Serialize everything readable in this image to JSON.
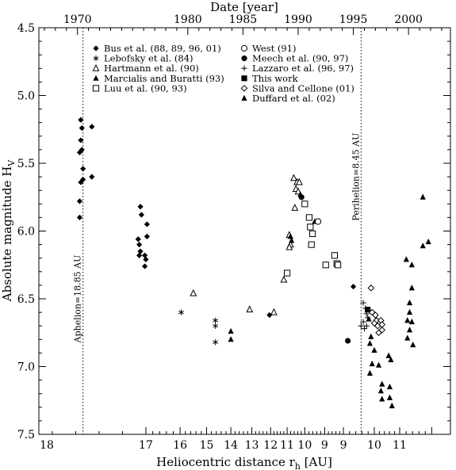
{
  "chart_data": {
    "type": "scatter",
    "title": "",
    "xlabel": "Heliocentric distance r",
    "xlabel_sub": "h",
    "xlabel_unit": " [AU]",
    "ylabel": "Absolute magnitude H",
    "ylabel_sub": "V",
    "top_xlabel": "Date [year]",
    "ylim": [
      4.5,
      7.5
    ],
    "y_inverted": true,
    "y_ticks": [
      "4.5",
      "5.0",
      "5.5",
      "6.0",
      "6.5",
      "7.0",
      "7.5"
    ],
    "top_ticks": [
      "1970",
      "1980",
      "1985",
      "1990",
      "1995",
      "2000"
    ],
    "bottom_ticks": [
      "18",
      "17",
      "16",
      "15",
      "14",
      "13",
      "12",
      "11",
      "10",
      "9",
      "9",
      "10",
      "11"
    ],
    "bottom_tick_labels": [
      {
        "label": "18",
        "edge": "start"
      },
      {
        "label": "18",
        "edge": "outbound"
      },
      {
        "label": "17",
        "edge": "outbound"
      },
      {
        "label": "16",
        "edge": "outbound"
      },
      {
        "label": "15",
        "edge": "outbound"
      },
      {
        "label": "14",
        "edge": "outbound"
      },
      {
        "label": "13",
        "edge": "outbound"
      },
      {
        "label": "12",
        "edge": "outbound"
      },
      {
        "label": "11",
        "edge": "outbound"
      },
      {
        "label": "10",
        "edge": "outbound"
      },
      {
        "label": "9",
        "edge": "outbound"
      },
      {
        "label": "9",
        "edge": "inbound"
      },
      {
        "label": "10",
        "edge": "inbound"
      },
      {
        "label": "11",
        "edge": "inbound"
      }
    ],
    "year_range": [
      1966.5,
      2003.8
    ],
    "year_ticks": [
      1970,
      1980,
      1985,
      1990,
      1995,
      2000
    ],
    "distance_ticks": [
      {
        "label": "18",
        "year": 1965.6
      },
      {
        "label": "18",
        "year": 1976.2
      },
      {
        "label": "17",
        "year": 1979.3
      },
      {
        "label": "16",
        "year": 1981.7
      },
      {
        "label": "15",
        "year": 1983.9
      },
      {
        "label": "14",
        "year": 1985.8
      },
      {
        "label": "13",
        "year": 1987.5
      },
      {
        "label": "12",
        "year": 1989.0
      },
      {
        "label": "11",
        "year": 1990.6
      },
      {
        "label": "10",
        "year": 1992.4
      },
      {
        "label": "9",
        "year": 1994.1
      },
      {
        "label": "9",
        "year": 1996.9
      },
      {
        "label": "10",
        "year": 1999.2
      },
      {
        "label": "11",
        "year": 2002.1
      }
    ],
    "annotations": [
      {
        "text": "Aphelion=18.85 AU",
        "year": 1970.5
      },
      {
        "text": "Perihelion=8.45 AU",
        "year": 1995.7
      }
    ],
    "legend": {
      "placement": "top-center",
      "entries": [
        {
          "label": "Bus et al. (88, 89, 96, 01)",
          "marker": "diamond-filled"
        },
        {
          "label": "Lebofsky et al. (84)",
          "marker": "asterisk"
        },
        {
          "label": "Hartmann et al. (90)",
          "marker": "triangle-open"
        },
        {
          "label": "Marcialis and Buratti (93)",
          "marker": "triangle-filled"
        },
        {
          "label": "Luu et al. (90, 93)",
          "marker": "square-open"
        },
        {
          "label": "West (91)",
          "marker": "circle-open"
        },
        {
          "label": "Meech et al. (90, 97)",
          "marker": "circle-filled"
        },
        {
          "label": "Lazzaro et al. (96, 97)",
          "marker": "plus"
        },
        {
          "label": "This work",
          "marker": "square-filled"
        },
        {
          "label": "Silva and Cellone (01)",
          "marker": "diamond-open"
        },
        {
          "label": "Duffard et al. (02)",
          "marker": "triangle-filled"
        }
      ]
    },
    "series": [
      {
        "name": "Bus et al. (88, 89, 96, 01)",
        "marker": "diamond-filled",
        "points": [
          [
            1970.3,
            5.18
          ],
          [
            1970.4,
            5.24
          ],
          [
            1970.3,
            5.33
          ],
          [
            1970.4,
            5.4
          ],
          [
            1970.2,
            5.42
          ],
          [
            1970.5,
            5.54
          ],
          [
            1970.3,
            5.64
          ],
          [
            1970.2,
            5.78
          ],
          [
            1970.2,
            5.9
          ],
          [
            1970.5,
            5.62
          ],
          [
            1971.3,
            5.23
          ],
          [
            1971.3,
            5.6
          ],
          [
            1975.7,
            5.82
          ],
          [
            1975.5,
            6.06
          ],
          [
            1975.8,
            5.88
          ],
          [
            1975.6,
            6.1
          ],
          [
            1976.3,
            5.95
          ],
          [
            1976.3,
            6.04
          ],
          [
            1975.7,
            6.15
          ],
          [
            1975.6,
            6.18
          ],
          [
            1976.1,
            6.18
          ],
          [
            1976.1,
            6.26
          ],
          [
            1976.2,
            6.21
          ],
          [
            1987.4,
            6.62
          ],
          [
            1995.0,
            6.41
          ]
        ]
      },
      {
        "name": "Lebofsky et al. (84)",
        "marker": "asterisk",
        "points": [
          [
            1979.4,
            6.6
          ],
          [
            1982.5,
            6.66
          ],
          [
            1982.5,
            6.7
          ],
          [
            1982.5,
            6.82
          ]
        ]
      },
      {
        "name": "Hartmann et al. (90)",
        "marker": "triangle-open",
        "points": [
          [
            1980.5,
            6.46
          ],
          [
            1985.6,
            6.58
          ],
          [
            1987.8,
            6.6
          ],
          [
            1988.7,
            6.36
          ],
          [
            1989.2,
            6.03
          ],
          [
            1989.3,
            6.1
          ],
          [
            1989.2,
            6.12
          ],
          [
            1989.7,
            5.83
          ],
          [
            1989.6,
            5.61
          ],
          [
            1989.9,
            5.64
          ],
          [
            1990.1,
            5.64
          ],
          [
            1989.8,
            5.69
          ],
          [
            1990.0,
            5.71
          ]
        ]
      },
      {
        "name": "Marcialis and Buratti (93)",
        "marker": "triangle-filled",
        "points": [
          [
            1983.9,
            6.74
          ],
          [
            1983.9,
            6.8
          ],
          [
            1989.3,
            6.04
          ],
          [
            1989.4,
            6.07
          ],
          [
            1991.5,
            5.93
          ],
          [
            1990.2,
            5.73
          ]
        ]
      },
      {
        "name": "Luu et al. (90, 93)",
        "marker": "square-open",
        "points": [
          [
            1989.0,
            6.31
          ],
          [
            1990.6,
            5.8
          ],
          [
            1991.0,
            5.9
          ],
          [
            1991.1,
            5.97
          ],
          [
            1991.3,
            6.02
          ],
          [
            1991.2,
            6.1
          ],
          [
            1992.5,
            6.25
          ],
          [
            1993.3,
            6.18
          ],
          [
            1993.5,
            6.24
          ],
          [
            1993.6,
            6.25
          ]
        ]
      },
      {
        "name": "West (91)",
        "marker": "circle-open",
        "points": [
          [
            1991.8,
            5.93
          ]
        ]
      },
      {
        "name": "Meech et al. (90, 97)",
        "marker": "circle-filled",
        "points": [
          [
            1990.3,
            5.75
          ],
          [
            1994.5,
            6.81
          ]
        ]
      },
      {
        "name": "Lazzaro et al. (96, 97)",
        "marker": "plus",
        "points": [
          [
            1995.9,
            6.53
          ],
          [
            1996.1,
            6.57
          ],
          [
            1996.2,
            6.61
          ],
          [
            1996.3,
            6.64
          ],
          [
            1995.9,
            6.67
          ],
          [
            1996.2,
            6.7
          ],
          [
            1996.0,
            6.72
          ],
          [
            1995.7,
            6.7
          ]
        ]
      },
      {
        "name": "This work",
        "marker": "square-filled",
        "points": [
          [
            1996.3,
            6.58
          ]
        ]
      },
      {
        "name": "Silva and Cellone (01)",
        "marker": "diamond-open",
        "points": [
          [
            1996.6,
            6.42
          ],
          [
            1996.7,
            6.6
          ],
          [
            1997.0,
            6.62
          ],
          [
            1997.1,
            6.66
          ],
          [
            1996.9,
            6.68
          ],
          [
            1997.5,
            6.66
          ],
          [
            1997.2,
            6.7
          ],
          [
            1997.6,
            6.69
          ],
          [
            1997.6,
            6.73
          ],
          [
            1997.3,
            6.75
          ]
        ]
      },
      {
        "name": "Duffard et al. (02)",
        "marker": "triangle-filled",
        "points": [
          [
            1996.4,
            6.65
          ],
          [
            1996.6,
            6.78
          ],
          [
            1996.5,
            6.83
          ],
          [
            1996.9,
            6.88
          ],
          [
            1996.7,
            6.98
          ],
          [
            1997.3,
            6.99
          ],
          [
            1996.5,
            7.05
          ],
          [
            1997.6,
            7.13
          ],
          [
            1997.5,
            7.18
          ],
          [
            1997.6,
            7.24
          ],
          [
            1998.3,
            7.15
          ],
          [
            1998.3,
            7.23
          ],
          [
            1998.5,
            7.29
          ],
          [
            1998.2,
            6.92
          ],
          [
            1998.4,
            6.95
          ],
          [
            1999.8,
            6.21
          ],
          [
            2000.3,
            6.25
          ],
          [
            2000.3,
            6.42
          ],
          [
            2000.1,
            6.53
          ],
          [
            2000.1,
            6.6
          ],
          [
            1999.9,
            6.66
          ],
          [
            2000.3,
            6.67
          ],
          [
            2000.1,
            6.73
          ],
          [
            1999.9,
            6.79
          ],
          [
            2000.4,
            6.84
          ],
          [
            2001.3,
            5.75
          ],
          [
            2001.3,
            6.11
          ],
          [
            2001.8,
            6.08
          ]
        ]
      }
    ]
  }
}
